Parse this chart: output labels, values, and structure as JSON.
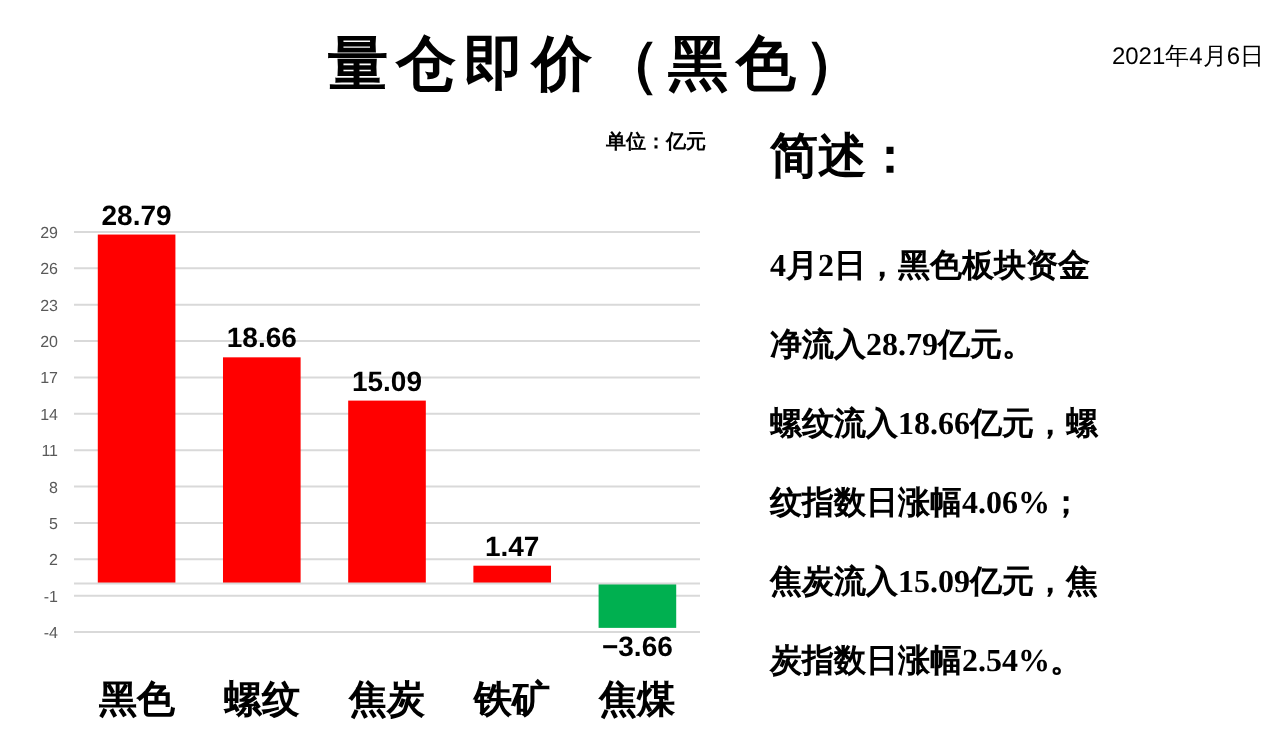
{
  "chart_data": {
    "type": "bar",
    "title": "量仓即价（黑色）",
    "ylabel": "单位：亿元",
    "categories": [
      "黑色",
      "螺纹",
      "焦炭",
      "铁矿",
      "焦煤"
    ],
    "values": [
      28.79,
      18.66,
      15.09,
      1.47,
      -3.66
    ],
    "colors": [
      "#ff0000",
      "#ff0000",
      "#ff0000",
      "#ff0000",
      "#00b050"
    ],
    "value_labels": [
      "28.79",
      "18.66",
      "15.09",
      "1.47",
      "−3.66"
    ],
    "ylim": [
      -4,
      29
    ],
    "yticks": [
      -4,
      -1,
      2,
      5,
      8,
      11,
      14,
      17,
      20,
      23,
      26,
      29
    ],
    "grid": "y",
    "annotations": [
      "2021年4月6日",
      "简述：",
      "4月2日，黑色板块资金",
      "净流入28.79亿元。",
      "螺纹流入18.66亿元，螺",
      "纹指数日涨幅4.06%；",
      "焦炭流入15.09亿元，焦",
      "炭指数日涨幅2.54%。"
    ]
  }
}
